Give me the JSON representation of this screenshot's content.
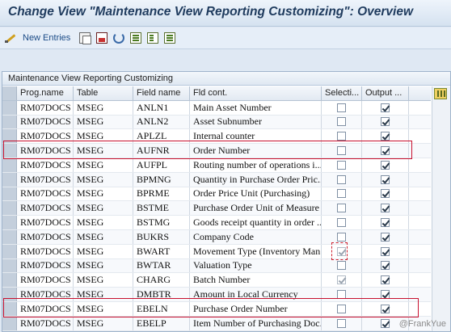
{
  "window": {
    "title": "Change View \"Maintenance View Reporting Customizing\": Overview"
  },
  "toolbar": {
    "new_entries_label": "New Entries",
    "icons": [
      "pen-icon",
      "copy-icon",
      "delete-icon",
      "undo-icon",
      "select-all-icon",
      "select-block-icon",
      "deselect-icon"
    ]
  },
  "panel": {
    "title": "Maintenance View Reporting Customizing"
  },
  "grid": {
    "columns": [
      "Prog.name",
      "Table",
      "Field name",
      "Fld cont.",
      "Selecti...",
      "Output ..."
    ],
    "rows": [
      {
        "prog": "RM07DOCS",
        "table": "MSEG",
        "field": "ANLN1",
        "cont": "Main Asset Number",
        "sel": false,
        "out": true
      },
      {
        "prog": "RM07DOCS",
        "table": "MSEG",
        "field": "ANLN2",
        "cont": "Asset Subnumber",
        "sel": false,
        "out": true
      },
      {
        "prog": "RM07DOCS",
        "table": "MSEG",
        "field": "APLZL",
        "cont": "Internal counter",
        "sel": false,
        "out": true
      },
      {
        "prog": "RM07DOCS",
        "table": "MSEG",
        "field": "AUFNR",
        "cont": "Order Number",
        "sel": false,
        "out": true
      },
      {
        "prog": "RM07DOCS",
        "table": "MSEG",
        "field": "AUFPL",
        "cont": "Routing number of operations i...",
        "sel": false,
        "out": true
      },
      {
        "prog": "RM07DOCS",
        "table": "MSEG",
        "field": "BPMNG",
        "cont": "Quantity in Purchase Order Pric...",
        "sel": false,
        "out": true
      },
      {
        "prog": "RM07DOCS",
        "table": "MSEG",
        "field": "BPRME",
        "cont": "Order Price Unit (Purchasing)",
        "sel": false,
        "out": true
      },
      {
        "prog": "RM07DOCS",
        "table": "MSEG",
        "field": "BSTME",
        "cont": "Purchase Order Unit of Measure",
        "sel": false,
        "out": true
      },
      {
        "prog": "RM07DOCS",
        "table": "MSEG",
        "field": "BSTMG",
        "cont": "Goods receipt quantity in order ...",
        "sel": false,
        "out": true
      },
      {
        "prog": "RM07DOCS",
        "table": "MSEG",
        "field": "BUKRS",
        "cont": "Company Code",
        "sel": false,
        "out": true
      },
      {
        "prog": "RM07DOCS",
        "table": "MSEG",
        "field": "BWART",
        "cont": "Movement Type (Inventory Man...",
        "sel": true,
        "out": true
      },
      {
        "prog": "RM07DOCS",
        "table": "MSEG",
        "field": "BWTAR",
        "cont": "Valuation Type",
        "sel": false,
        "out": true
      },
      {
        "prog": "RM07DOCS",
        "table": "MSEG",
        "field": "CHARG",
        "cont": "Batch Number",
        "sel": true,
        "out": true
      },
      {
        "prog": "RM07DOCS",
        "table": "MSEG",
        "field": "DMBTR",
        "cont": "Amount in Local Currency",
        "sel": false,
        "out": true
      },
      {
        "prog": "RM07DOCS",
        "table": "MSEG",
        "field": "EBELN",
        "cont": "Purchase Order Number",
        "sel": false,
        "out": true
      },
      {
        "prog": "RM07DOCS",
        "table": "MSEG",
        "field": "EBELP",
        "cont": "Item Number of Purchasing Doc...",
        "sel": false,
        "out": true
      }
    ]
  },
  "watermark": "@FrankYue",
  "colors": {
    "highlight": "#c8102e",
    "title_text": "#1f3b5e"
  }
}
